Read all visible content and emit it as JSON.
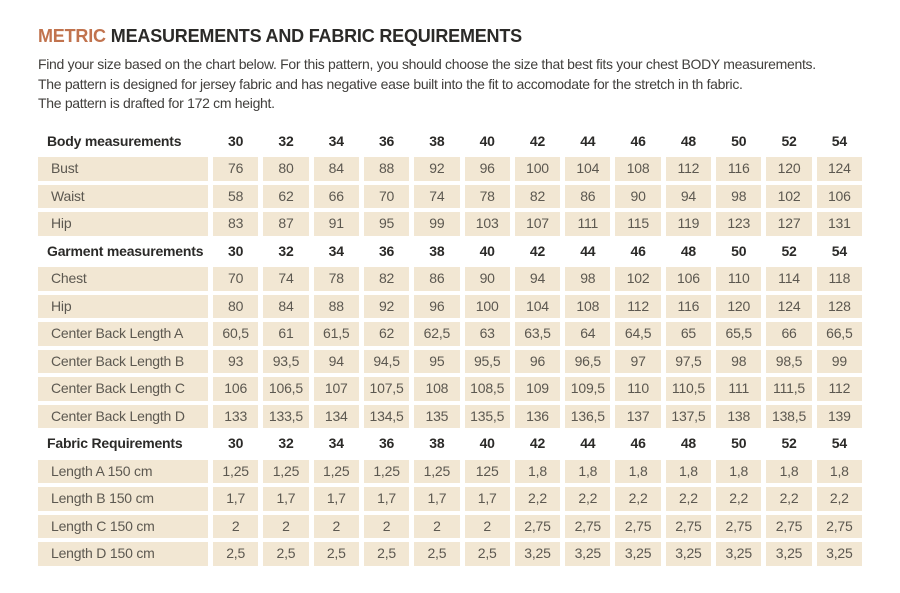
{
  "page": {
    "title_highlight": "METRIC",
    "title_rest": "MEASUREMENTS AND FABRIC REQUIREMENTS",
    "intro_lines": [
      "Find your size based on the chart below. For this pattern, you should choose the size that best fits your chest BODY measurements.",
      "The pattern is designed for jersey fabric and has negative ease built into the fit to accomodate for the stretch in th fabric.",
      "The pattern is drafted for 172 cm height."
    ]
  },
  "colors": {
    "accent_orange": "#c1734e",
    "cell_beige": "#f2e7d3",
    "heading_text": "#2b2a28",
    "cell_text": "#5c5850"
  },
  "chart_data": {
    "type": "table",
    "title": "METRIC MEASUREMENTS AND FABRIC REQUIREMENTS",
    "sizes": [
      "30",
      "32",
      "34",
      "36",
      "38",
      "40",
      "42",
      "44",
      "46",
      "48",
      "50",
      "52",
      "54"
    ],
    "rows": [
      {
        "type": "header",
        "label": "Body measurements",
        "cells": [
          "30",
          "32",
          "34",
          "36",
          "38",
          "40",
          "42",
          "44",
          "46",
          "48",
          "50",
          "52",
          "54"
        ]
      },
      {
        "type": "data",
        "label": "Bust",
        "cells": [
          "76",
          "80",
          "84",
          "88",
          "92",
          "96",
          "100",
          "104",
          "108",
          "112",
          "116",
          "120",
          "124"
        ]
      },
      {
        "type": "data",
        "label": "Waist",
        "cells": [
          "58",
          "62",
          "66",
          "70",
          "74",
          "78",
          "82",
          "86",
          "90",
          "94",
          "98",
          "102",
          "106"
        ]
      },
      {
        "type": "data",
        "label": "Hip",
        "cells": [
          "83",
          "87",
          "91",
          "95",
          "99",
          "103",
          "107",
          "111",
          "115",
          "119",
          "123",
          "127",
          "131"
        ]
      },
      {
        "type": "header",
        "label": "Garment measurements",
        "cells": [
          "30",
          "32",
          "34",
          "36",
          "38",
          "40",
          "42",
          "44",
          "46",
          "48",
          "50",
          "52",
          "54"
        ]
      },
      {
        "type": "data",
        "label": "Chest",
        "cells": [
          "70",
          "74",
          "78",
          "82",
          "86",
          "90",
          "94",
          "98",
          "102",
          "106",
          "110",
          "114",
          "118"
        ]
      },
      {
        "type": "data",
        "label": "Hip",
        "cells": [
          "80",
          "84",
          "88",
          "92",
          "96",
          "100",
          "104",
          "108",
          "112",
          "116",
          "120",
          "124",
          "128"
        ]
      },
      {
        "type": "data",
        "label": "Center Back Length A",
        "cells": [
          "60,5",
          "61",
          "61,5",
          "62",
          "62,5",
          "63",
          "63,5",
          "64",
          "64,5",
          "65",
          "65,5",
          "66",
          "66,5"
        ]
      },
      {
        "type": "data",
        "label": "Center Back Length B",
        "cells": [
          "93",
          "93,5",
          "94",
          "94,5",
          "95",
          "95,5",
          "96",
          "96,5",
          "97",
          "97,5",
          "98",
          "98,5",
          "99"
        ]
      },
      {
        "type": "data",
        "label": "Center Back Length C",
        "cells": [
          "106",
          "106,5",
          "107",
          "107,5",
          "108",
          "108,5",
          "109",
          "109,5",
          "110",
          "110,5",
          "111",
          "111,5",
          "112"
        ]
      },
      {
        "type": "data",
        "label": "Center Back Length D",
        "cells": [
          "133",
          "133,5",
          "134",
          "134,5",
          "135",
          "135,5",
          "136",
          "136,5",
          "137",
          "137,5",
          "138",
          "138,5",
          "139"
        ]
      },
      {
        "type": "header",
        "label": "Fabric Requirements",
        "cells": [
          "30",
          "32",
          "34",
          "36",
          "38",
          "40",
          "42",
          "44",
          "46",
          "48",
          "50",
          "52",
          "54"
        ]
      },
      {
        "type": "data",
        "label": "Length A 150 cm",
        "cells": [
          "1,25",
          "1,25",
          "1,25",
          "1,25",
          "1,25",
          "125",
          "1,8",
          "1,8",
          "1,8",
          "1,8",
          "1,8",
          "1,8",
          "1,8"
        ]
      },
      {
        "type": "data",
        "label": "Length B 150 cm",
        "cells": [
          "1,7",
          "1,7",
          "1,7",
          "1,7",
          "1,7",
          "1,7",
          "2,2",
          "2,2",
          "2,2",
          "2,2",
          "2,2",
          "2,2",
          "2,2"
        ]
      },
      {
        "type": "data",
        "label": "Length C 150 cm",
        "cells": [
          "2",
          "2",
          "2",
          "2",
          "2",
          "2",
          "2,75",
          "2,75",
          "2,75",
          "2,75",
          "2,75",
          "2,75",
          "2,75"
        ]
      },
      {
        "type": "data",
        "label": "Length D 150 cm",
        "cells": [
          "2,5",
          "2,5",
          "2,5",
          "2,5",
          "2,5",
          "2,5",
          "3,25",
          "3,25",
          "3,25",
          "3,25",
          "3,25",
          "3,25",
          "3,25"
        ]
      }
    ]
  }
}
